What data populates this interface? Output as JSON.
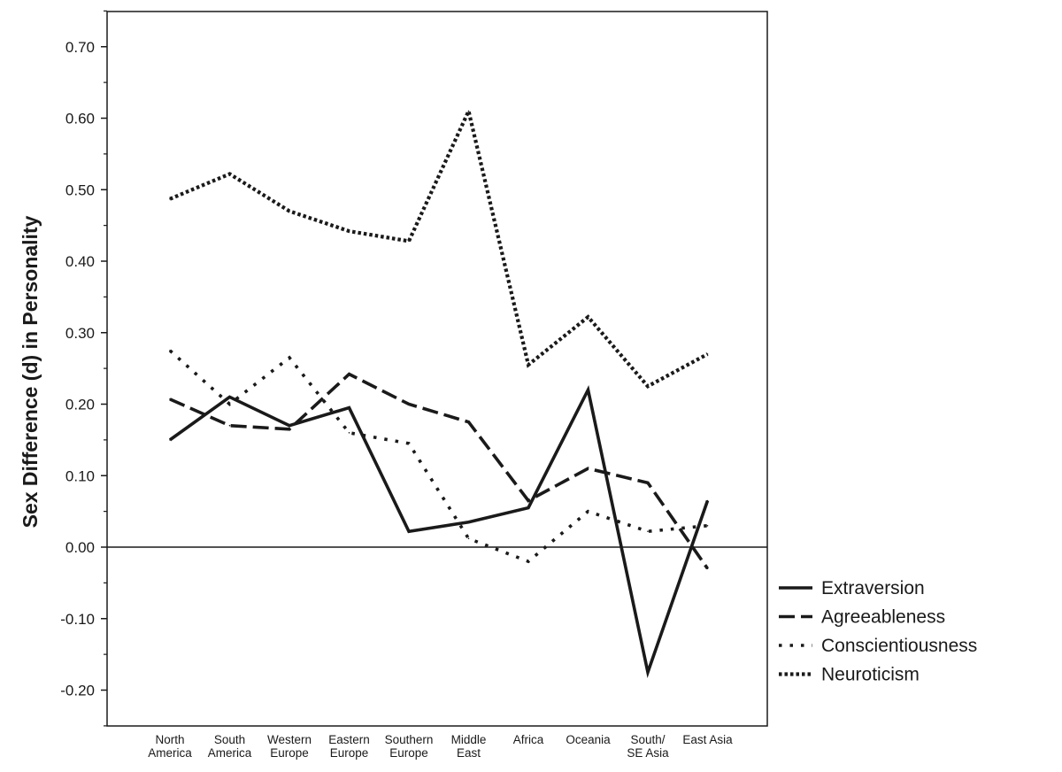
{
  "chart_data": {
    "type": "line",
    "title": "",
    "xlabel": "",
    "ylabel": "Sex Difference (d) in Personality",
    "ylim": [
      -0.25,
      0.75
    ],
    "yticks": [
      -0.2,
      -0.1,
      0.0,
      0.1,
      0.2,
      0.3,
      0.4,
      0.5,
      0.6,
      0.7
    ],
    "ytick_labels": [
      "-0.20",
      "-0.10",
      "0.00",
      "0.10",
      "0.20",
      "0.30",
      "0.40",
      "0.50",
      "0.60",
      "0.70"
    ],
    "zero_line": true,
    "grid": false,
    "legend_position": "right",
    "categories": [
      [
        "North",
        "America"
      ],
      [
        "South",
        "America"
      ],
      [
        "Western",
        "Europe"
      ],
      [
        "Eastern",
        "Europe"
      ],
      [
        "Southern",
        "Europe"
      ],
      [
        "Middle",
        "East"
      ],
      [
        "Africa"
      ],
      [
        "Oceania"
      ],
      [
        "South/",
        "SE Asia"
      ],
      [
        "East Asia"
      ]
    ],
    "series": [
      {
        "name": "Extraversion",
        "style": "solid",
        "values": [
          0.15,
          0.21,
          0.17,
          0.195,
          0.022,
          0.035,
          0.055,
          0.22,
          -0.175,
          0.065
        ]
      },
      {
        "name": "Agreeableness",
        "style": "dashed",
        "values": [
          0.207,
          0.17,
          0.165,
          0.242,
          0.2,
          0.175,
          0.065,
          0.11,
          0.09,
          -0.03
        ]
      },
      {
        "name": "Conscientiousness",
        "style": "dotted",
        "values": [
          0.275,
          0.2,
          0.265,
          0.16,
          0.145,
          0.012,
          -0.02,
          0.05,
          0.022,
          0.03
        ]
      },
      {
        "name": "Neuroticism",
        "style": "dense-dotted",
        "values": [
          0.487,
          0.522,
          0.47,
          0.442,
          0.428,
          0.61,
          0.255,
          0.322,
          0.225,
          0.27
        ]
      }
    ]
  }
}
